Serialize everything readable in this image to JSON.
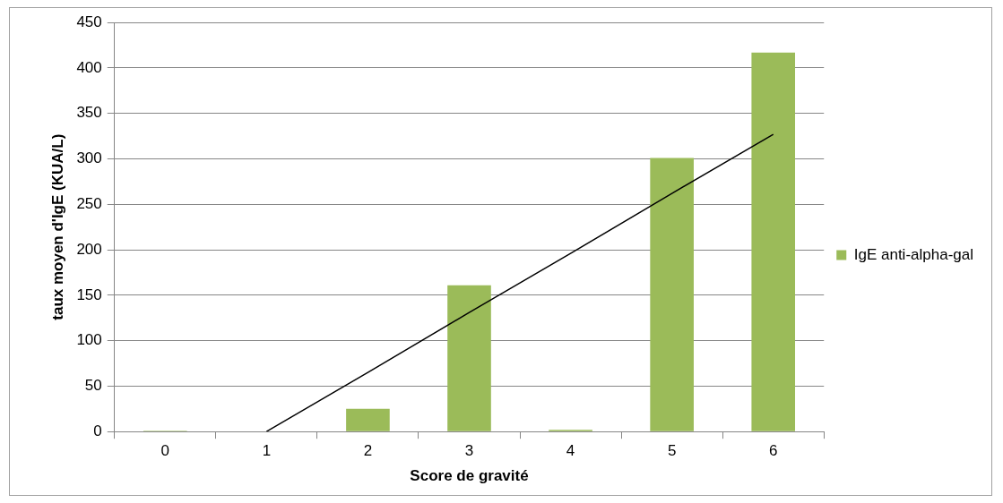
{
  "chart_data": {
    "type": "bar",
    "xlabel": "Score de gravité",
    "ylabel": "taux moyen d'IgE (KUA/L)",
    "categories": [
      "0",
      "1",
      "2",
      "3",
      "4",
      "5",
      "6"
    ],
    "series": [
      {
        "name": "IgE anti-alpha-gal",
        "color": "#9bbb59",
        "values": [
          1,
          0,
          25,
          161,
          2,
          301,
          417
        ]
      },
      {
        "type": "line",
        "color": "#000000",
        "values": [
          null,
          0,
          65,
          131,
          196,
          262,
          327
        ]
      }
    ],
    "ylim": [
      0,
      450
    ],
    "yticks": [
      0,
      50,
      100,
      150,
      200,
      250,
      300,
      350,
      400,
      450
    ],
    "grid": "y",
    "legend": "right"
  }
}
